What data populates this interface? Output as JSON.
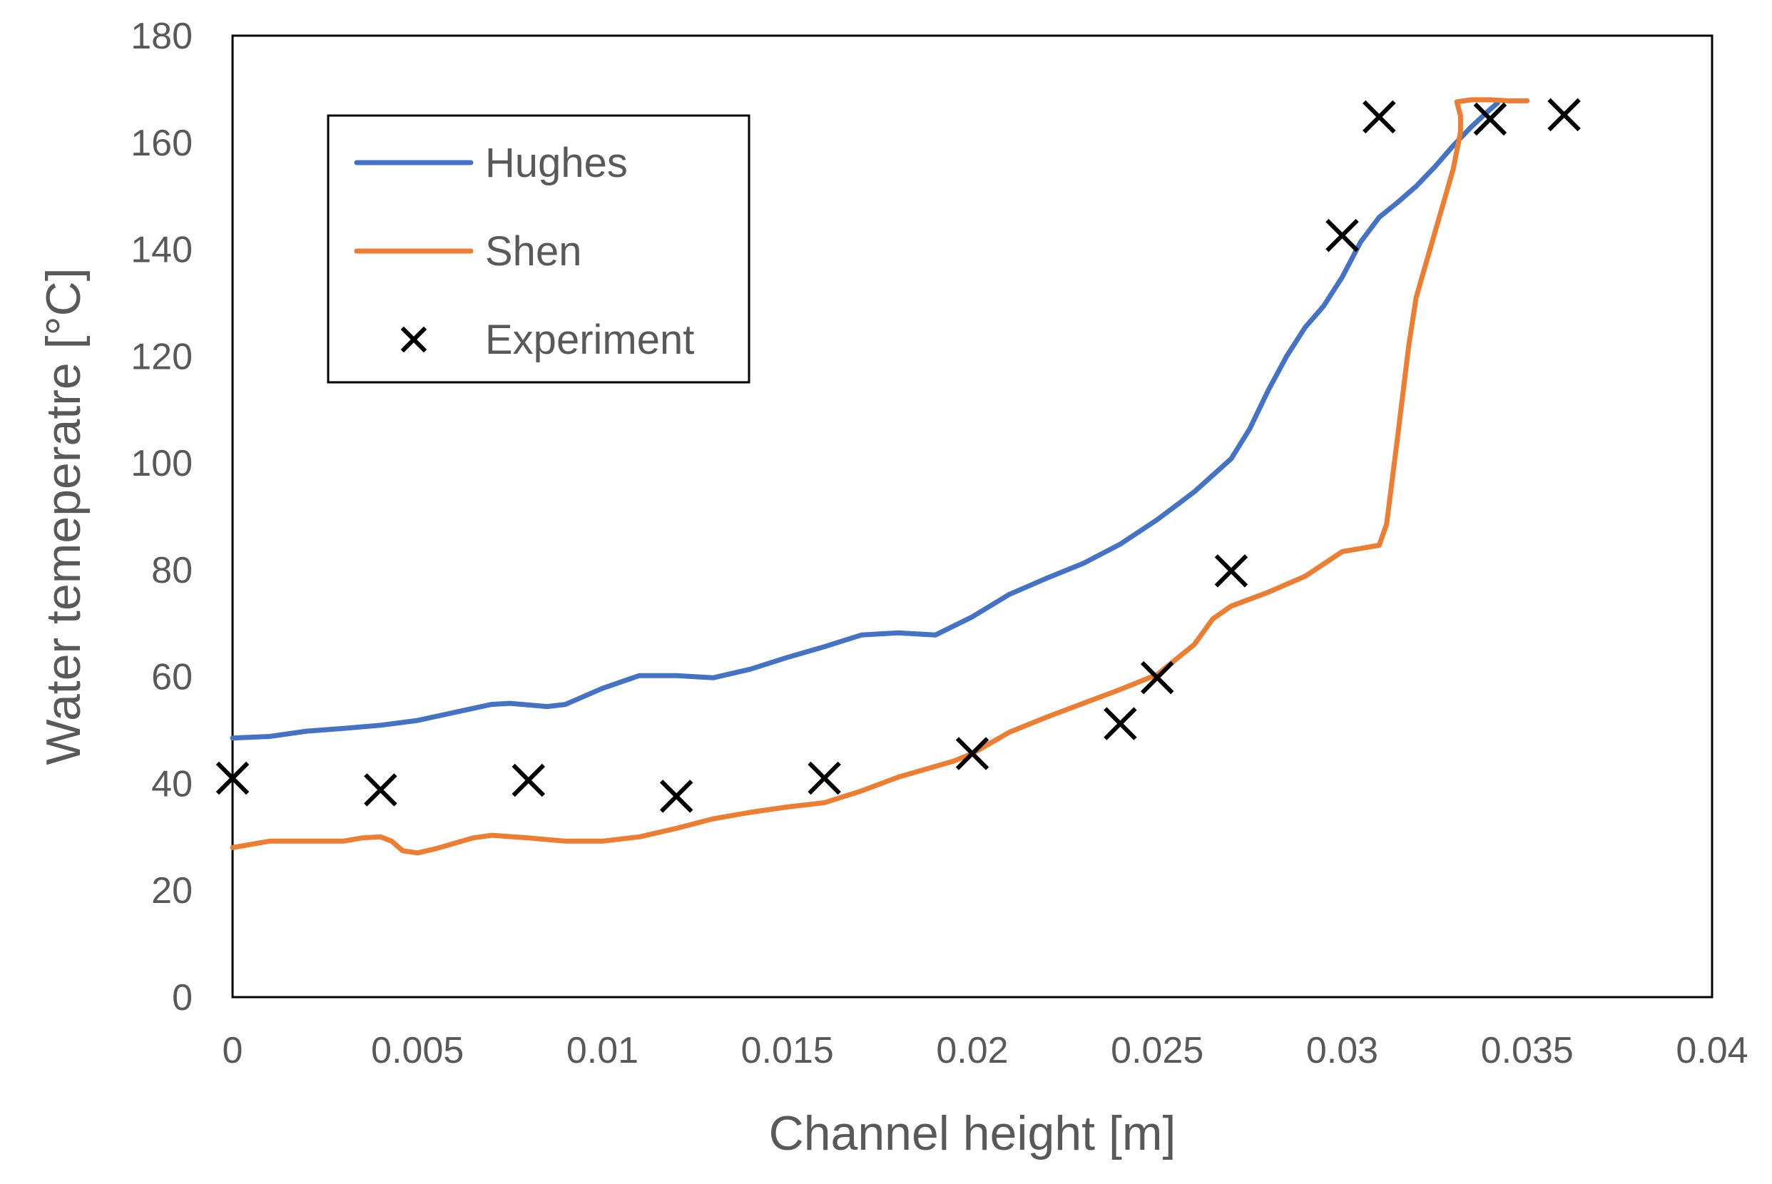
{
  "chart_data": {
    "type": "line",
    "title": "",
    "xlabel": "Channel height [m]",
    "ylabel": "Water temeperatre [°C]",
    "xlim": [
      0,
      0.04
    ],
    "ylim": [
      0,
      180
    ],
    "xticks": [
      0,
      0.005,
      0.01,
      0.015,
      0.02,
      0.025,
      0.03,
      0.035,
      0.04
    ],
    "xtick_labels": [
      "0",
      "0.005",
      "0.01",
      "0.015",
      "0.02",
      "0.025",
      "0.03",
      "0.035",
      "0.04"
    ],
    "yticks": [
      0,
      20,
      40,
      60,
      80,
      100,
      120,
      140,
      160,
      180
    ],
    "ytick_labels": [
      "0",
      "20",
      "40",
      "60",
      "80",
      "100",
      "120",
      "140",
      "160",
      "180"
    ],
    "grid": false,
    "legend_position": "top-left",
    "series": [
      {
        "name": "Hughes",
        "kind": "line",
        "color": "#4472C4",
        "points": [
          [
            0,
            48.5
          ],
          [
            0.001,
            48.8
          ],
          [
            0.002,
            49.8
          ],
          [
            0.003,
            50.3
          ],
          [
            0.004,
            50.9
          ],
          [
            0.005,
            51.8
          ],
          [
            0.006,
            53.3
          ],
          [
            0.007,
            54.8
          ],
          [
            0.0075,
            55
          ],
          [
            0.0085,
            54.4
          ],
          [
            0.009,
            54.8
          ],
          [
            0.01,
            57.8
          ],
          [
            0.011,
            60.2
          ],
          [
            0.012,
            60.2
          ],
          [
            0.013,
            59.8
          ],
          [
            0.014,
            61.4
          ],
          [
            0.015,
            63.6
          ],
          [
            0.016,
            65.6
          ],
          [
            0.017,
            67.8
          ],
          [
            0.018,
            68.2
          ],
          [
            0.019,
            67.8
          ],
          [
            0.02,
            71.2
          ],
          [
            0.021,
            75.4
          ],
          [
            0.022,
            78.4
          ],
          [
            0.023,
            81.2
          ],
          [
            0.024,
            84.8
          ],
          [
            0.025,
            89.4
          ],
          [
            0.026,
            94.6
          ],
          [
            0.027,
            100.8
          ],
          [
            0.0275,
            106.4
          ],
          [
            0.028,
            113.6
          ],
          [
            0.0285,
            120
          ],
          [
            0.029,
            125.4
          ],
          [
            0.0295,
            129.4
          ],
          [
            0.03,
            134.8
          ],
          [
            0.0305,
            141.4
          ],
          [
            0.031,
            146
          ],
          [
            0.0315,
            148.8
          ],
          [
            0.032,
            151.8
          ],
          [
            0.0325,
            155.4
          ],
          [
            0.033,
            159.4
          ],
          [
            0.0335,
            163
          ],
          [
            0.034,
            166.2
          ],
          [
            0.0342,
            167.4
          ]
        ]
      },
      {
        "name": "Shen",
        "kind": "line",
        "color": "#ED7D31",
        "points": [
          [
            0,
            28
          ],
          [
            0.001,
            29.2
          ],
          [
            0.002,
            29.2
          ],
          [
            0.003,
            29.2
          ],
          [
            0.0035,
            29.8
          ],
          [
            0.004,
            30
          ],
          [
            0.0043,
            29.2
          ],
          [
            0.0046,
            27.4
          ],
          [
            0.005,
            27
          ],
          [
            0.0055,
            27.8
          ],
          [
            0.0065,
            29.8
          ],
          [
            0.007,
            30.3
          ],
          [
            0.008,
            29.8
          ],
          [
            0.009,
            29.2
          ],
          [
            0.01,
            29.2
          ],
          [
            0.011,
            30
          ],
          [
            0.012,
            31.6
          ],
          [
            0.013,
            33.4
          ],
          [
            0.014,
            34.6
          ],
          [
            0.015,
            35.6
          ],
          [
            0.016,
            36.4
          ],
          [
            0.017,
            38.6
          ],
          [
            0.018,
            41.2
          ],
          [
            0.019,
            43.2
          ],
          [
            0.0195,
            44.2
          ],
          [
            0.02,
            45.6
          ],
          [
            0.021,
            49.6
          ],
          [
            0.022,
            52.4
          ],
          [
            0.023,
            55
          ],
          [
            0.024,
            57.6
          ],
          [
            0.025,
            60.4
          ],
          [
            0.026,
            66
          ],
          [
            0.0265,
            70.8
          ],
          [
            0.027,
            73.2
          ],
          [
            0.028,
            75.8
          ],
          [
            0.029,
            78.8
          ],
          [
            0.03,
            83.4
          ],
          [
            0.0305,
            84
          ],
          [
            0.031,
            84.6
          ],
          [
            0.0312,
            88.5
          ],
          [
            0.0315,
            105
          ],
          [
            0.0318,
            122
          ],
          [
            0.032,
            131
          ],
          [
            0.0325,
            143
          ],
          [
            0.033,
            155
          ],
          [
            0.0332,
            162
          ],
          [
            0.0332,
            165
          ],
          [
            0.0331,
            167.6
          ],
          [
            0.0335,
            168
          ],
          [
            0.034,
            168
          ],
          [
            0.0345,
            167.8
          ],
          [
            0.035,
            167.8
          ]
        ]
      },
      {
        "name": "Experiment",
        "kind": "scatter",
        "color": "#000000",
        "marker": "x",
        "points": [
          [
            0,
            41
          ],
          [
            0.004,
            38.8
          ],
          [
            0.008,
            40.6
          ],
          [
            0.012,
            37.6
          ],
          [
            0.016,
            41
          ],
          [
            0.02,
            45.6
          ],
          [
            0.024,
            51.2
          ],
          [
            0.025,
            59.8
          ],
          [
            0.027,
            79.8
          ],
          [
            0.03,
            142.6
          ],
          [
            0.031,
            164.8
          ],
          [
            0.034,
            164.4
          ],
          [
            0.036,
            165.2
          ]
        ]
      }
    ]
  }
}
